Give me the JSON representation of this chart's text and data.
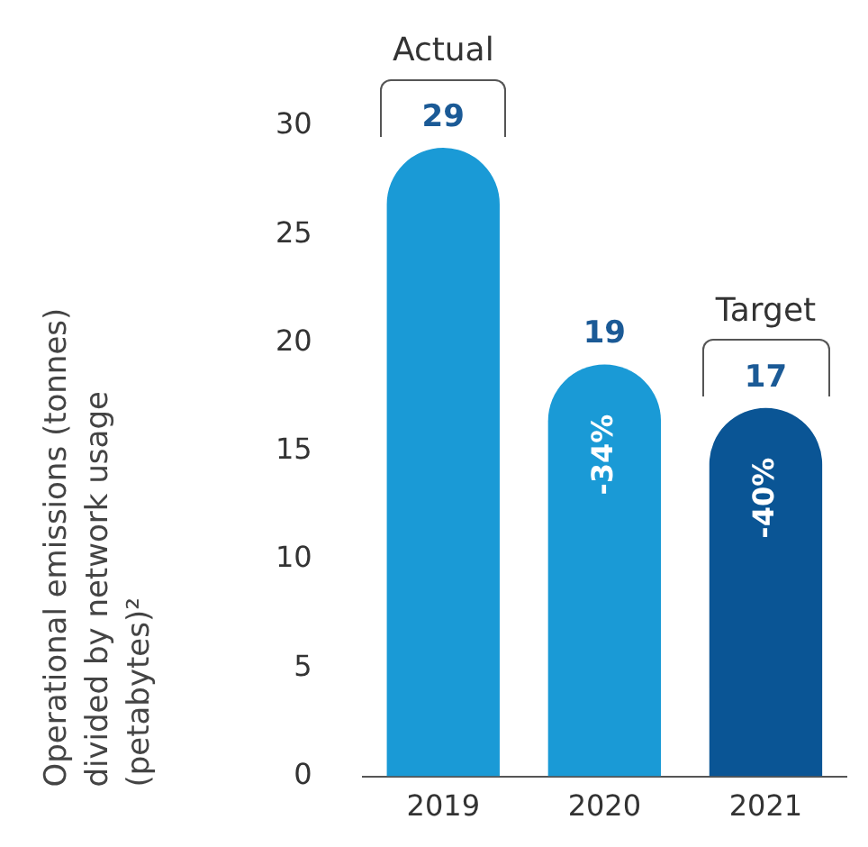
{
  "chart_data": {
    "type": "bar",
    "ylabel": "Operational emissions (tonnes) divided by network usage (petabytes)²",
    "categories": [
      "2019",
      "2020",
      "2021"
    ],
    "values": [
      29,
      19,
      17
    ],
    "colors": [
      "#1a9ad6",
      "#1a9ad6",
      "#0a5595"
    ],
    "ylim": [
      0,
      30
    ],
    "yticks": [
      0,
      5,
      10,
      15,
      20,
      25,
      30
    ],
    "grid": false,
    "legend": false,
    "data_labels": true,
    "annotations": [
      {
        "text": "Actual",
        "x": "2019",
        "y": 29
      },
      {
        "text": "-34%",
        "x": "2020",
        "y": 19
      },
      {
        "text": "Target",
        "x": "2021",
        "y": 17
      },
      {
        "text": "-40%",
        "x": "2021",
        "y": 17
      }
    ]
  }
}
